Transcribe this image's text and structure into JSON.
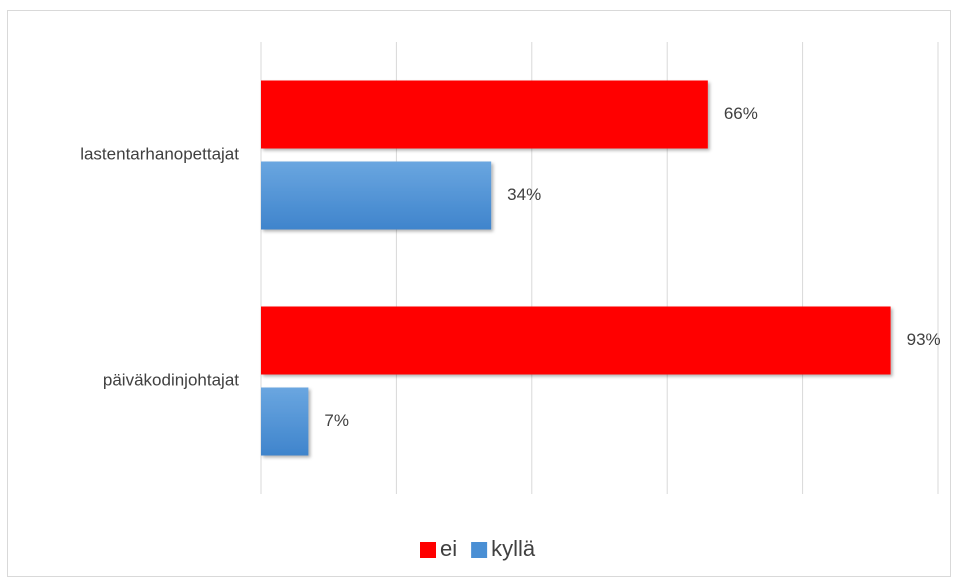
{
  "chart_data": {
    "type": "bar",
    "orientation": "horizontal",
    "categories": [
      "lastentarhanopettajat",
      "päiväkodinjohtajat"
    ],
    "series": [
      {
        "name": "ei",
        "values": [
          66,
          93
        ],
        "labels": [
          "66%",
          "93%"
        ],
        "color": "#ff0000"
      },
      {
        "name": "kyllä",
        "values": [
          34,
          7
        ],
        "labels": [
          "34%",
          "7%"
        ],
        "color": "#4a8fd4"
      }
    ],
    "xlim": [
      0,
      100
    ],
    "grid": true,
    "legend_position": "bottom",
    "title": "",
    "xlabel": "",
    "ylabel": ""
  }
}
